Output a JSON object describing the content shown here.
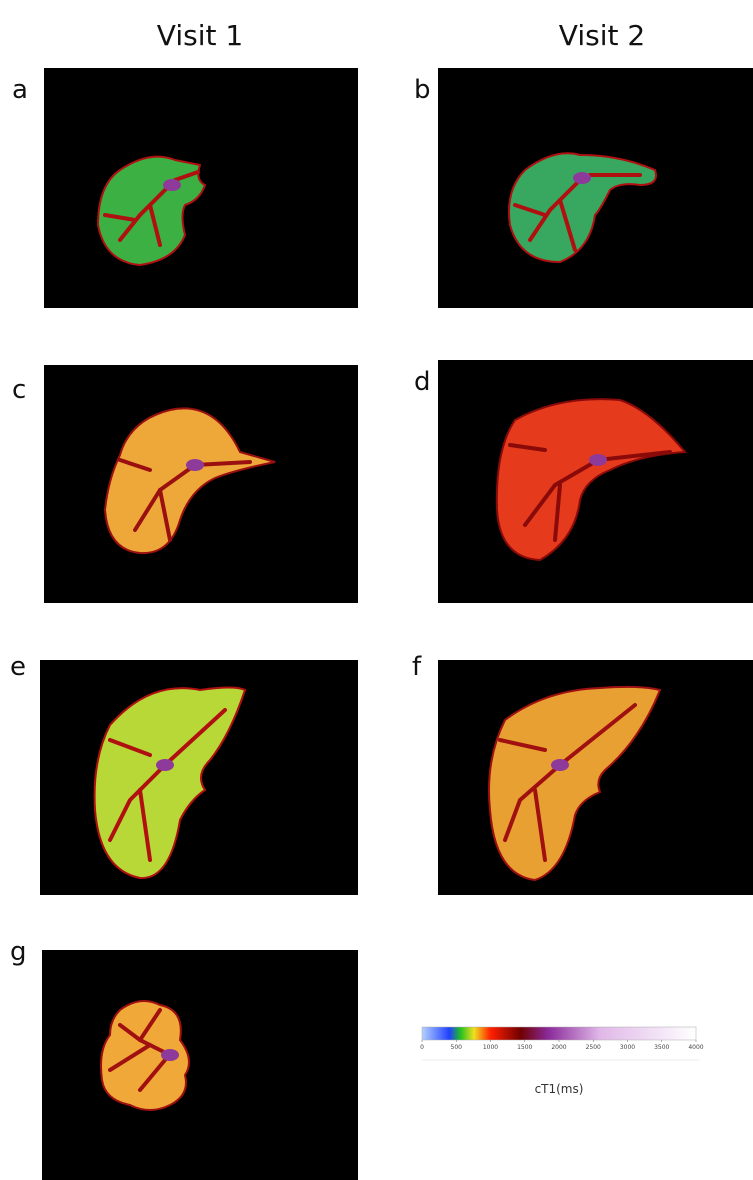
{
  "headers": [
    "Visit 1",
    "Visit 2"
  ],
  "panels": [
    "a",
    "b",
    "c",
    "d",
    "e",
    "f",
    "g"
  ],
  "colorbar": {
    "ticks": [
      0,
      500,
      1000,
      1500,
      2000,
      2500,
      3000,
      3500,
      4000
    ],
    "label": "cT1(ms)"
  }
}
